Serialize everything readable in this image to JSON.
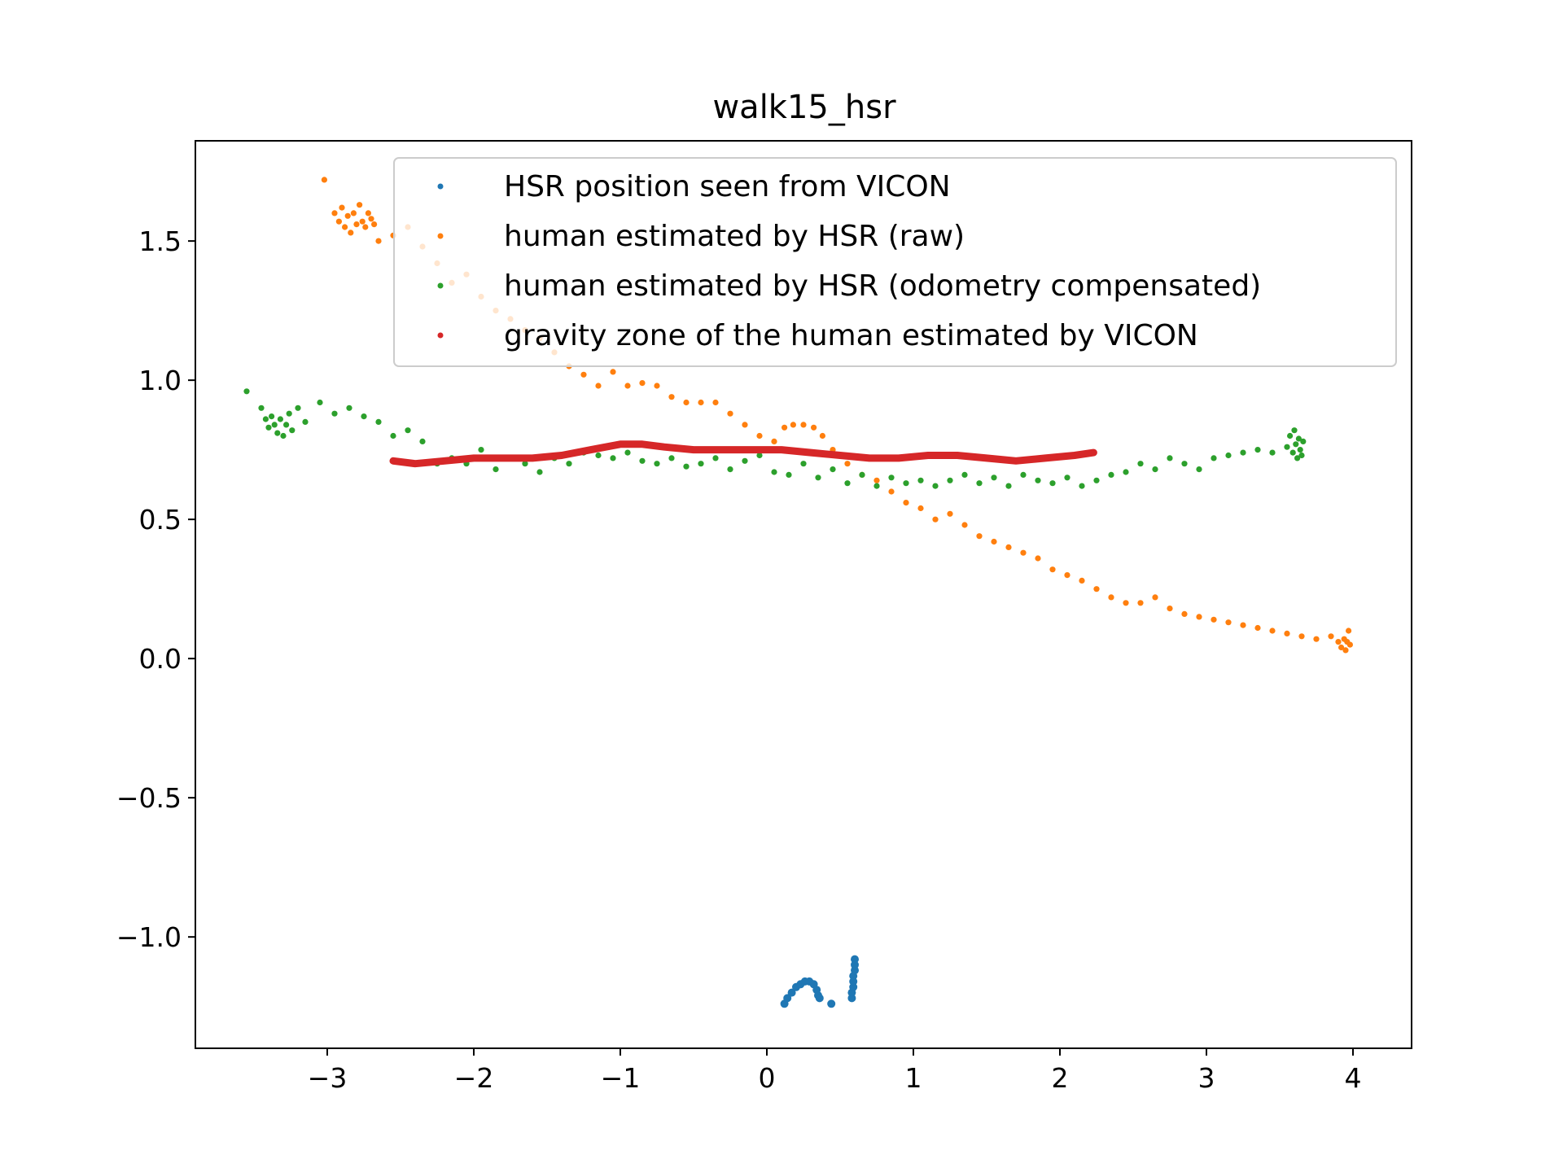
{
  "chart_data": {
    "type": "scatter",
    "title": "walk15_hsr",
    "xlabel": "",
    "ylabel": "",
    "xlim": [
      -3.9,
      4.4
    ],
    "ylim": [
      -1.4,
      1.86
    ],
    "xticks": [
      -3,
      -2,
      -1,
      0,
      1,
      2,
      3,
      4
    ],
    "xtick_labels": [
      "−3",
      "−2",
      "−1",
      "0",
      "1",
      "2",
      "3",
      "4"
    ],
    "yticks": [
      -1.0,
      -0.5,
      0.0,
      0.5,
      1.0,
      1.5
    ],
    "ytick_labels": [
      "−1.0",
      "−0.5",
      "0.0",
      "0.5",
      "1.0",
      "1.5"
    ],
    "grid": false,
    "legend_position": "upper-right",
    "series": [
      {
        "name": "HSR position seen from VICON",
        "color": "#1f77b4",
        "points": [
          [
            0.12,
            -1.24
          ],
          [
            0.14,
            -1.22
          ],
          [
            0.17,
            -1.2
          ],
          [
            0.2,
            -1.18
          ],
          [
            0.23,
            -1.17
          ],
          [
            0.26,
            -1.16
          ],
          [
            0.29,
            -1.16
          ],
          [
            0.32,
            -1.17
          ],
          [
            0.34,
            -1.19
          ],
          [
            0.35,
            -1.21
          ],
          [
            0.36,
            -1.22
          ],
          [
            0.44,
            -1.24
          ],
          [
            0.58,
            -1.22
          ],
          [
            0.58,
            -1.2
          ],
          [
            0.59,
            -1.18
          ],
          [
            0.59,
            -1.16
          ],
          [
            0.59,
            -1.14
          ],
          [
            0.6,
            -1.12
          ],
          [
            0.6,
            -1.1
          ],
          [
            0.6,
            -1.08
          ]
        ]
      },
      {
        "name": "human estimated by HSR (raw)",
        "color": "#ff7f0e",
        "points": [
          [
            -3.02,
            1.72
          ],
          [
            -2.95,
            1.6
          ],
          [
            -2.92,
            1.57
          ],
          [
            -2.9,
            1.62
          ],
          [
            -2.88,
            1.55
          ],
          [
            -2.86,
            1.59
          ],
          [
            -2.84,
            1.53
          ],
          [
            -2.82,
            1.6
          ],
          [
            -2.8,
            1.56
          ],
          [
            -2.78,
            1.63
          ],
          [
            -2.76,
            1.57
          ],
          [
            -2.74,
            1.55
          ],
          [
            -2.72,
            1.6
          ],
          [
            -2.7,
            1.58
          ],
          [
            -2.68,
            1.56
          ],
          [
            -2.65,
            1.5
          ],
          [
            -2.55,
            1.52
          ],
          [
            -2.45,
            1.55
          ],
          [
            -2.35,
            1.48
          ],
          [
            -2.25,
            1.42
          ],
          [
            -2.15,
            1.35
          ],
          [
            -2.05,
            1.38
          ],
          [
            -1.95,
            1.3
          ],
          [
            -1.85,
            1.25
          ],
          [
            -1.75,
            1.22
          ],
          [
            -1.65,
            1.18
          ],
          [
            -1.55,
            1.15
          ],
          [
            -1.45,
            1.1
          ],
          [
            -1.35,
            1.05
          ],
          [
            -1.25,
            1.02
          ],
          [
            -1.15,
            0.98
          ],
          [
            -1.05,
            1.03
          ],
          [
            -0.95,
            0.98
          ],
          [
            -0.85,
            0.99
          ],
          [
            -0.75,
            0.98
          ],
          [
            -0.65,
            0.94
          ],
          [
            -0.55,
            0.92
          ],
          [
            -0.45,
            0.92
          ],
          [
            -0.35,
            0.92
          ],
          [
            -0.25,
            0.88
          ],
          [
            -0.15,
            0.84
          ],
          [
            -0.05,
            0.8
          ],
          [
            0.05,
            0.78
          ],
          [
            0.12,
            0.83
          ],
          [
            0.18,
            0.84
          ],
          [
            0.25,
            0.84
          ],
          [
            0.32,
            0.83
          ],
          [
            0.38,
            0.8
          ],
          [
            0.45,
            0.75
          ],
          [
            0.55,
            0.7
          ],
          [
            0.65,
            0.66
          ],
          [
            0.75,
            0.64
          ],
          [
            0.85,
            0.6
          ],
          [
            0.95,
            0.56
          ],
          [
            1.05,
            0.54
          ],
          [
            1.15,
            0.5
          ],
          [
            1.25,
            0.52
          ],
          [
            1.35,
            0.48
          ],
          [
            1.45,
            0.44
          ],
          [
            1.55,
            0.42
          ],
          [
            1.65,
            0.4
          ],
          [
            1.75,
            0.38
          ],
          [
            1.85,
            0.36
          ],
          [
            1.95,
            0.32
          ],
          [
            2.05,
            0.3
          ],
          [
            2.15,
            0.28
          ],
          [
            2.25,
            0.25
          ],
          [
            2.35,
            0.22
          ],
          [
            2.45,
            0.2
          ],
          [
            2.55,
            0.2
          ],
          [
            2.65,
            0.22
          ],
          [
            2.75,
            0.18
          ],
          [
            2.85,
            0.16
          ],
          [
            2.95,
            0.15
          ],
          [
            3.05,
            0.14
          ],
          [
            3.15,
            0.13
          ],
          [
            3.25,
            0.12
          ],
          [
            3.35,
            0.11
          ],
          [
            3.45,
            0.1
          ],
          [
            3.55,
            0.09
          ],
          [
            3.65,
            0.08
          ],
          [
            3.75,
            0.07
          ],
          [
            3.85,
            0.08
          ],
          [
            3.9,
            0.06
          ],
          [
            3.92,
            0.04
          ],
          [
            3.94,
            0.07
          ],
          [
            3.95,
            0.03
          ],
          [
            3.96,
            0.06
          ],
          [
            3.97,
            0.1
          ],
          [
            3.98,
            0.05
          ]
        ]
      },
      {
        "name": "human estimated by HSR (odometry compensated)",
        "color": "#2ca02c",
        "points": [
          [
            -3.55,
            0.96
          ],
          [
            -3.45,
            0.9
          ],
          [
            -3.42,
            0.86
          ],
          [
            -3.4,
            0.83
          ],
          [
            -3.38,
            0.87
          ],
          [
            -3.36,
            0.84
          ],
          [
            -3.34,
            0.81
          ],
          [
            -3.32,
            0.86
          ],
          [
            -3.3,
            0.8
          ],
          [
            -3.28,
            0.84
          ],
          [
            -3.26,
            0.88
          ],
          [
            -3.24,
            0.82
          ],
          [
            -3.2,
            0.9
          ],
          [
            -3.15,
            0.85
          ],
          [
            -3.05,
            0.92
          ],
          [
            -2.95,
            0.88
          ],
          [
            -2.85,
            0.9
          ],
          [
            -2.75,
            0.87
          ],
          [
            -2.65,
            0.85
          ],
          [
            -2.55,
            0.8
          ],
          [
            -2.45,
            0.82
          ],
          [
            -2.35,
            0.78
          ],
          [
            -2.25,
            0.7
          ],
          [
            -2.15,
            0.72
          ],
          [
            -2.05,
            0.7
          ],
          [
            -1.95,
            0.75
          ],
          [
            -1.85,
            0.68
          ],
          [
            -1.75,
            0.72
          ],
          [
            -1.65,
            0.7
          ],
          [
            -1.55,
            0.67
          ],
          [
            -1.45,
            0.72
          ],
          [
            -1.35,
            0.7
          ],
          [
            -1.25,
            0.74
          ],
          [
            -1.15,
            0.73
          ],
          [
            -1.05,
            0.72
          ],
          [
            -0.95,
            0.74
          ],
          [
            -0.85,
            0.71
          ],
          [
            -0.75,
            0.7
          ],
          [
            -0.65,
            0.72
          ],
          [
            -0.55,
            0.69
          ],
          [
            -0.45,
            0.7
          ],
          [
            -0.35,
            0.72
          ],
          [
            -0.25,
            0.68
          ],
          [
            -0.15,
            0.71
          ],
          [
            -0.05,
            0.73
          ],
          [
            0.05,
            0.67
          ],
          [
            0.15,
            0.66
          ],
          [
            0.25,
            0.7
          ],
          [
            0.35,
            0.65
          ],
          [
            0.45,
            0.68
          ],
          [
            0.55,
            0.63
          ],
          [
            0.65,
            0.66
          ],
          [
            0.75,
            0.62
          ],
          [
            0.85,
            0.65
          ],
          [
            0.95,
            0.63
          ],
          [
            1.05,
            0.64
          ],
          [
            1.15,
            0.62
          ],
          [
            1.25,
            0.64
          ],
          [
            1.35,
            0.66
          ],
          [
            1.45,
            0.63
          ],
          [
            1.55,
            0.65
          ],
          [
            1.65,
            0.62
          ],
          [
            1.75,
            0.66
          ],
          [
            1.85,
            0.64
          ],
          [
            1.95,
            0.63
          ],
          [
            2.05,
            0.65
          ],
          [
            2.15,
            0.62
          ],
          [
            2.25,
            0.64
          ],
          [
            2.35,
            0.66
          ],
          [
            2.45,
            0.67
          ],
          [
            2.55,
            0.7
          ],
          [
            2.65,
            0.68
          ],
          [
            2.75,
            0.72
          ],
          [
            2.85,
            0.7
          ],
          [
            2.95,
            0.68
          ],
          [
            3.05,
            0.72
          ],
          [
            3.15,
            0.73
          ],
          [
            3.25,
            0.74
          ],
          [
            3.35,
            0.75
          ],
          [
            3.45,
            0.74
          ],
          [
            3.55,
            0.76
          ],
          [
            3.57,
            0.8
          ],
          [
            3.59,
            0.74
          ],
          [
            3.6,
            0.82
          ],
          [
            3.61,
            0.77
          ],
          [
            3.62,
            0.72
          ],
          [
            3.63,
            0.79
          ],
          [
            3.64,
            0.75
          ],
          [
            3.65,
            0.73
          ],
          [
            3.66,
            0.78
          ]
        ]
      },
      {
        "name": "gravity zone of the human estimated by VICON",
        "color": "#d62728",
        "path": [
          [
            -2.55,
            0.71
          ],
          [
            -2.4,
            0.7
          ],
          [
            -2.2,
            0.71
          ],
          [
            -2.0,
            0.72
          ],
          [
            -1.8,
            0.72
          ],
          [
            -1.6,
            0.72
          ],
          [
            -1.4,
            0.73
          ],
          [
            -1.2,
            0.75
          ],
          [
            -1.0,
            0.77
          ],
          [
            -0.85,
            0.77
          ],
          [
            -0.7,
            0.76
          ],
          [
            -0.5,
            0.75
          ],
          [
            -0.3,
            0.75
          ],
          [
            -0.1,
            0.75
          ],
          [
            0.1,
            0.75
          ],
          [
            0.3,
            0.74
          ],
          [
            0.5,
            0.73
          ],
          [
            0.7,
            0.72
          ],
          [
            0.9,
            0.72
          ],
          [
            1.1,
            0.73
          ],
          [
            1.3,
            0.73
          ],
          [
            1.5,
            0.72
          ],
          [
            1.7,
            0.71
          ],
          [
            1.9,
            0.72
          ],
          [
            2.1,
            0.73
          ],
          [
            2.23,
            0.74
          ]
        ]
      }
    ]
  }
}
